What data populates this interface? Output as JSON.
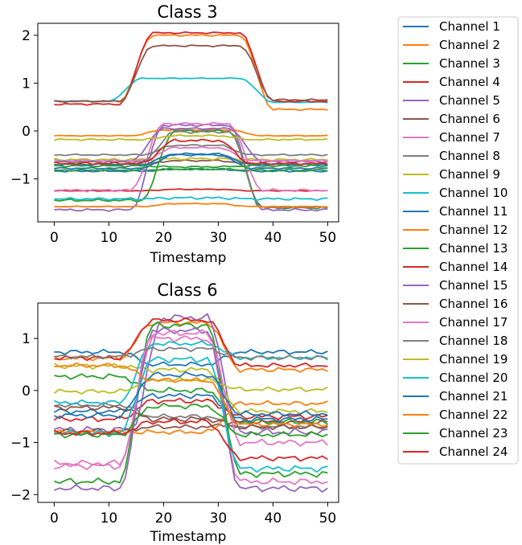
{
  "figure": {
    "legend_placement": "right of subplots, outside"
  },
  "chart_data": [
    {
      "type": "line",
      "title": "Class 3",
      "xlabel": "Timestamp",
      "ylabel": "",
      "xlim": [
        -3,
        52
      ],
      "ylim": [
        -1.9,
        2.25
      ],
      "xticks": [
        0,
        10,
        20,
        30,
        40,
        50
      ],
      "yticks": [
        -1,
        0,
        1,
        2
      ],
      "grid": false,
      "series": [
        {
          "name": "Channel 1",
          "base": -0.84,
          "peak": -0.8,
          "start": 16,
          "end": 36,
          "noise": 0.02
        },
        {
          "name": "Channel 2",
          "base": 0.62,
          "peak": 2.0,
          "end_val": 0.45,
          "start": 12,
          "end": 40,
          "noise": 0.02
        },
        {
          "name": "Channel 3",
          "base": -0.82,
          "peak": -0.8,
          "start": 16,
          "end": 36,
          "noise": 0.02
        },
        {
          "name": "Channel 4",
          "base": -1.25,
          "peak": -1.22,
          "start": 16,
          "end": 36,
          "noise": 0.01
        },
        {
          "name": "Channel 5",
          "base": -1.65,
          "peak": 0.12,
          "start": 14,
          "end": 38,
          "noise": 0.03
        },
        {
          "name": "Channel 6",
          "base": -0.7,
          "peak": -0.62,
          "start": 16,
          "end": 36,
          "noise": 0.02
        },
        {
          "name": "Channel 7",
          "base": -1.24,
          "peak": 0.15,
          "start": 14,
          "end": 38,
          "noise": 0.03
        },
        {
          "name": "Channel 8",
          "base": -0.5,
          "peak": -0.3,
          "start": 16,
          "end": 36,
          "noise": 0.02
        },
        {
          "name": "Channel 9",
          "base": -0.6,
          "peak": -0.58,
          "start": 16,
          "end": 36,
          "noise": 0.03
        },
        {
          "name": "Channel 10",
          "base": 0.62,
          "peak": 1.1,
          "end_val": 0.6,
          "start": 10,
          "end": 40,
          "noise": 0.01
        },
        {
          "name": "Channel 11",
          "base": -0.78,
          "peak": -0.5,
          "start": 16,
          "end": 36,
          "noise": 0.02
        },
        {
          "name": "Channel 12",
          "base": -0.1,
          "peak": 0.02,
          "start": 14,
          "end": 38,
          "noise": 0.01
        },
        {
          "name": "Channel 13",
          "base": -1.45,
          "peak": 0.0,
          "end_val": -1.6,
          "start": 16,
          "end": 38,
          "noise": 0.03
        },
        {
          "name": "Channel 14",
          "base": 0.56,
          "peak": 2.05,
          "end_val": 0.62,
          "start": 12,
          "end": 40,
          "noise": 0.02
        },
        {
          "name": "Channel 15",
          "base": -0.64,
          "peak": 0.05,
          "start": 14,
          "end": 38,
          "noise": 0.02
        },
        {
          "name": "Channel 16",
          "base": 0.62,
          "peak": 1.78,
          "end_val": 0.65,
          "start": 12,
          "end": 40,
          "noise": 0.02
        },
        {
          "name": "Channel 17",
          "base": -0.62,
          "peak": -0.35,
          "start": 16,
          "end": 36,
          "noise": 0.02
        },
        {
          "name": "Channel 18",
          "base": -0.65,
          "peak": -0.02,
          "end_val": -1.6,
          "start": 16,
          "end": 38,
          "noise": 0.03
        },
        {
          "name": "Channel 19",
          "base": -0.18,
          "peak": -0.1,
          "start": 16,
          "end": 36,
          "noise": 0.02
        },
        {
          "name": "Channel 20",
          "base": -1.42,
          "peak": -1.4,
          "start": 16,
          "end": 36,
          "noise": 0.03
        },
        {
          "name": "Channel 21",
          "base": -0.7,
          "peak": -0.48,
          "start": 16,
          "end": 36,
          "noise": 0.02
        },
        {
          "name": "Channel 22",
          "base": -1.58,
          "peak": -1.52,
          "start": 16,
          "end": 36,
          "noise": 0.01
        },
        {
          "name": "Channel 23",
          "base": -0.73,
          "peak": -0.75,
          "start": 16,
          "end": 36,
          "noise": 0.02
        },
        {
          "name": "Channel 24",
          "base": -0.68,
          "peak": -0.2,
          "start": 16,
          "end": 36,
          "noise": 0.03
        }
      ]
    },
    {
      "type": "line",
      "title": "Class 6",
      "xlabel": "Timestamp",
      "ylabel": "",
      "xlim": [
        -3,
        52
      ],
      "ylim": [
        -2.15,
        1.68
      ],
      "xticks": [
        0,
        10,
        20,
        30,
        40,
        50
      ],
      "yticks": [
        -2,
        -1,
        0,
        1
      ],
      "grid": false,
      "series": [
        {
          "name": "Channel 1",
          "base": 0.74,
          "peak": 0.5,
          "start": 12,
          "end": 34,
          "noise": 0.05
        },
        {
          "name": "Channel 2",
          "base": 0.62,
          "peak": 1.3,
          "end_val": 0.4,
          "start": 12,
          "end": 34,
          "noise": 0.05
        },
        {
          "name": "Channel 3",
          "base": 0.27,
          "peak": 0.0,
          "end_val": -0.6,
          "start": 12,
          "end": 34,
          "noise": 0.06
        },
        {
          "name": "Channel 4",
          "base": -0.55,
          "peak": -0.2,
          "end_val": -0.5,
          "start": 12,
          "end": 34,
          "noise": 0.06
        },
        {
          "name": "Channel 5",
          "base": -0.75,
          "peak": 1.4,
          "end_val": -0.8,
          "start": 14,
          "end": 34,
          "noise": 0.08
        },
        {
          "name": "Channel 6",
          "base": -0.78,
          "peak": -0.7,
          "end_val": -0.6,
          "start": 12,
          "end": 34,
          "noise": 0.05
        },
        {
          "name": "Channel 7",
          "base": -1.45,
          "peak": 1.0,
          "end_val": -1.75,
          "start": 12,
          "end": 34,
          "noise": 0.07
        },
        {
          "name": "Channel 8",
          "base": -0.28,
          "peak": -0.5,
          "end_val": -0.7,
          "start": 12,
          "end": 34,
          "noise": 0.05
        },
        {
          "name": "Channel 9",
          "base": 0.47,
          "peak": 0.4,
          "end_val": -0.4,
          "start": 12,
          "end": 34,
          "noise": 0.06
        },
        {
          "name": "Channel 10",
          "base": -0.23,
          "peak": 0.9,
          "end_val": 0.63,
          "start": 12,
          "end": 34,
          "noise": 0.05
        },
        {
          "name": "Channel 11",
          "base": -0.4,
          "peak": -0.1,
          "end_val": -0.55,
          "start": 12,
          "end": 34,
          "noise": 0.06
        },
        {
          "name": "Channel 12",
          "base": -0.8,
          "peak": -0.8,
          "end_val": -0.25,
          "start": 12,
          "end": 34,
          "noise": 0.05
        },
        {
          "name": "Channel 13",
          "base": -1.75,
          "peak": 1.25,
          "end_val": -1.6,
          "start": 12,
          "end": 34,
          "noise": 0.07
        },
        {
          "name": "Channel 14",
          "base": 0.63,
          "peak": 1.35,
          "end_val": 0.48,
          "start": 12,
          "end": 34,
          "noise": 0.05
        },
        {
          "name": "Channel 15",
          "base": -1.88,
          "peak": 1.15,
          "end_val": -1.88,
          "start": 12,
          "end": 34,
          "noise": 0.07
        },
        {
          "name": "Channel 16",
          "base": -0.33,
          "peak": -0.55,
          "end_val": -0.7,
          "start": 12,
          "end": 34,
          "noise": 0.06
        },
        {
          "name": "Channel 17",
          "base": -1.4,
          "peak": 1.1,
          "end_val": -1.0,
          "start": 12,
          "end": 34,
          "noise": 0.07
        },
        {
          "name": "Channel 18",
          "base": 0.65,
          "peak": 0.8,
          "end_val": 0.63,
          "start": 12,
          "end": 34,
          "noise": 0.05
        },
        {
          "name": "Channel 19",
          "base": -0.02,
          "peak": 0.2,
          "end_val": 0.02,
          "start": 12,
          "end": 34,
          "noise": 0.05
        },
        {
          "name": "Channel 20",
          "base": -0.82,
          "peak": 0.6,
          "end_val": -1.5,
          "start": 12,
          "end": 34,
          "noise": 0.07
        },
        {
          "name": "Channel 21",
          "base": -0.48,
          "peak": 0.3,
          "end_val": -0.45,
          "start": 12,
          "end": 34,
          "noise": 0.06
        },
        {
          "name": "Channel 22",
          "base": 0.48,
          "peak": 0.2,
          "end_val": -0.65,
          "start": 12,
          "end": 34,
          "noise": 0.05
        },
        {
          "name": "Channel 23",
          "base": -0.85,
          "peak": -0.3,
          "end_val": -0.85,
          "start": 12,
          "end": 34,
          "noise": 0.06
        },
        {
          "name": "Channel 24",
          "base": -0.82,
          "peak": -0.6,
          "end_val": -1.3,
          "start": 12,
          "end": 34,
          "noise": 0.06
        }
      ]
    }
  ],
  "legend": {
    "entries": [
      "Channel 1",
      "Channel 2",
      "Channel 3",
      "Channel 4",
      "Channel 5",
      "Channel 6",
      "Channel 7",
      "Channel 8",
      "Channel 9",
      "Channel 10",
      "Channel 11",
      "Channel 12",
      "Channel 13",
      "Channel 14",
      "Channel 15",
      "Channel 16",
      "Channel 17",
      "Channel 18",
      "Channel 19",
      "Channel 20",
      "Channel 21",
      "Channel 22",
      "Channel 23",
      "Channel 24"
    ],
    "colors": [
      "#1f77b4",
      "#ff7f0e",
      "#2ca02c",
      "#d62728",
      "#9467bd",
      "#8c564b",
      "#e377c2",
      "#7f7f7f",
      "#bcbd22",
      "#17becf"
    ]
  }
}
